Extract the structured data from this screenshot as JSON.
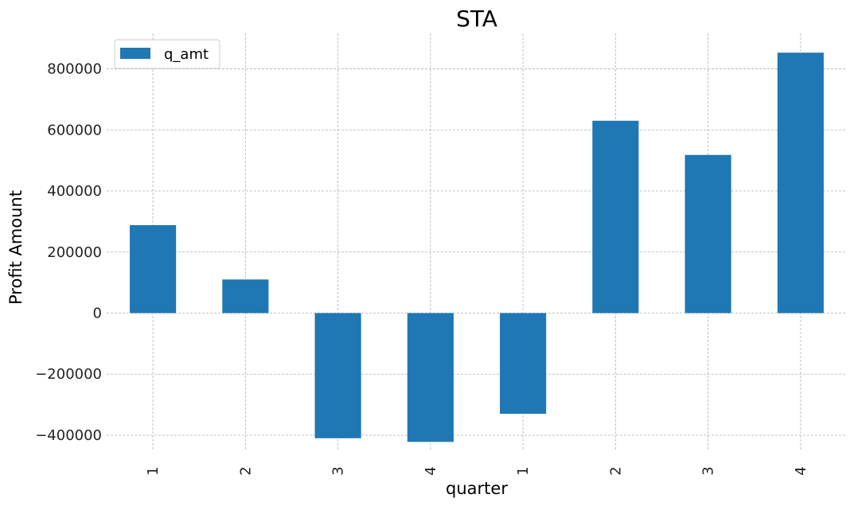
{
  "chart_data": {
    "type": "bar",
    "title": "STA",
    "xlabel": "quarter",
    "ylabel": "Profit Amount",
    "categories": [
      "1",
      "2",
      "3",
      "4",
      "1",
      "2",
      "3",
      "4"
    ],
    "series": [
      {
        "name": "q_amt",
        "values": [
          288000,
          110000,
          -410000,
          -422000,
          -330000,
          630000,
          518000,
          853000
        ],
        "color": "#1f77b4"
      }
    ],
    "yticks": [
      -400000,
      -200000,
      0,
      200000,
      400000,
      600000,
      800000
    ],
    "ytick_labels": [
      "−400000",
      "−200000",
      "0",
      "200000",
      "400000",
      "600000",
      "800000"
    ],
    "ylim": [
      -480000,
      920000
    ],
    "grid": true,
    "legend_position": "top-left"
  }
}
